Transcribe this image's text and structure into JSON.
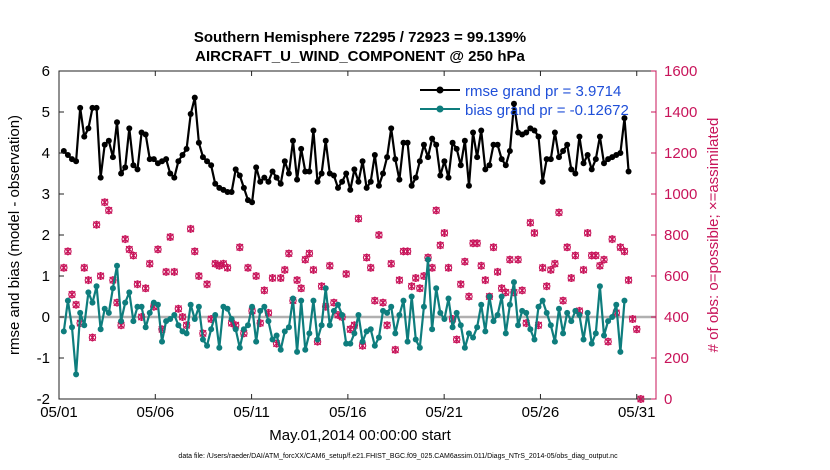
{
  "chart_data": {
    "type": "line",
    "title": "Southern Hemisphere 72295 / 72923 = 99.139%",
    "subtitle": "AIRCRAFT_U_WIND_COMPONENT @ 250 hPa",
    "xlabel": "May.01,2014 00:00:00 start",
    "ylabel": "rmse and bias (model - observation)",
    "y2label": "# of obs: o=possible; ×=assimilated",
    "footnote": "data file: /Users/raeder/DAI/ATM_forcXX/CAM6_setup/f.e21.FHIST_BGC.f09_025.CAM6assim.011/Diags_NTrS_2014-05/obs_diag_output.nc",
    "x_ticks": [
      "05/01",
      "05/06",
      "05/11",
      "05/16",
      "05/21",
      "05/26",
      "05/31"
    ],
    "x_tick_days": [
      1,
      6,
      11,
      16,
      21,
      26,
      31
    ],
    "xlim": [
      1,
      32
    ],
    "ylim": [
      -2,
      6
    ],
    "y_ticks": [
      "-2",
      "-1",
      "0",
      "1",
      "2",
      "3",
      "4",
      "5",
      "6"
    ],
    "y2lim": [
      0,
      1600
    ],
    "y2_ticks": [
      "0",
      "200",
      "400",
      "600",
      "800",
      "1000",
      "1200",
      "1400",
      "1600"
    ],
    "grid": false,
    "legend_position": "top-right",
    "series": [
      {
        "name": "rmse grand pr = 3.9714",
        "color": "#000000",
        "values": [
          4.05,
          3.95,
          3.85,
          3.8,
          5.1,
          4.4,
          4.6,
          5.1,
          5.1,
          3.4,
          4.2,
          4.3,
          3.9,
          4.75,
          3.5,
          3.65,
          4.6,
          3.7,
          3.6,
          4.5,
          4.45,
          3.85,
          3.85,
          3.75,
          3.8,
          3.85,
          3.5,
          3.4,
          3.8,
          3.95,
          4.1,
          4.95,
          5.35,
          4.25,
          3.9,
          3.8,
          3.7,
          3.25,
          3.15,
          3.1,
          3.05,
          3.05,
          3.6,
          3.45,
          3.15,
          2.85,
          2.8,
          3.65,
          3.3,
          3.4,
          3.3,
          3.55,
          3.4,
          3.25,
          3.8,
          3.5,
          4.3,
          3.35,
          4.1,
          3.55,
          3.55,
          4.55,
          3.3,
          3.5,
          4.3,
          3.5,
          3.45,
          3.15,
          3.3,
          3.5,
          3.1,
          3.6,
          3.3,
          3.8,
          3.15,
          3.3,
          3.95,
          3.2,
          3.5,
          3.9,
          4.6,
          3.85,
          3.35,
          4.25,
          4.25,
          3.2,
          3.4,
          3.8,
          4.2,
          3.9,
          4.35,
          4.2,
          3.45,
          3.8,
          3.4,
          4.25,
          4.1,
          3.7,
          4.3,
          3.2,
          4.5,
          3.9,
          4.55,
          3.6,
          3.7,
          4.2,
          4.2,
          3.85,
          3.7,
          4.05,
          5.2,
          4.5,
          4.45,
          4.5,
          4.6,
          4.55,
          4.4,
          3.3,
          3.85,
          3.85,
          4.5,
          3.9,
          4.05,
          4.2,
          3.6,
          3.5,
          4.4,
          3.75,
          3.95,
          3.6,
          3.85,
          4.4,
          3.75,
          3.85,
          3.9,
          3.95,
          4.0,
          4.85,
          3.55
        ]
      },
      {
        "name": "bias grand pr = -0.12672",
        "color": "#0e7d7d",
        "values": [
          -0.35,
          0.4,
          -0.25,
          -1.4,
          0.1,
          -0.2,
          0.6,
          0.35,
          0.75,
          -0.3,
          0.2,
          0.1,
          0.7,
          1.25,
          -0.1,
          0.35,
          0.6,
          -0.1,
          0.25,
          0.25,
          -0.25,
          0.1,
          0.35,
          0.3,
          -0.6,
          -0.1,
          -0.05,
          0.05,
          -0.2,
          -0.35,
          -0.4,
          0.3,
          -0.05,
          0.25,
          -0.55,
          -0.7,
          -0.3,
          0.05,
          -0.75,
          0.25,
          0.2,
          -0.05,
          -0.3,
          -0.75,
          -0.3,
          -0.2,
          0.25,
          -0.6,
          0.15,
          0.25,
          -0.1,
          -0.55,
          -0.45,
          -0.8,
          -0.35,
          -0.25,
          0.45,
          -0.85,
          0.4,
          -0.8,
          -0.4,
          0.4,
          -0.55,
          -0.2,
          0.7,
          -0.2,
          0.15,
          0.3,
          0.05,
          -0.65,
          -0.65,
          -0.4,
          0.05,
          -0.6,
          -0.35,
          -0.3,
          -0.7,
          -0.5,
          0.15,
          0.1,
          0.25,
          -0.4,
          0.05,
          0.4,
          -0.6,
          0.5,
          -0.55,
          -0.75,
          0.25,
          1.4,
          -0.3,
          0.7,
          0.1,
          -0.05,
          0.45,
          -0.25,
          0.1,
          -0.2,
          -0.75,
          -0.4,
          -0.5,
          -0.25,
          0.3,
          -0.35,
          0.5,
          -0.1,
          0.05,
          0.5,
          -0.4,
          0.3,
          0.85,
          -0.2,
          0.15,
          0.1,
          -0.3,
          -0.55,
          0.25,
          0.4,
          0.1,
          -0.2,
          -0.6,
          0.2,
          -0.4,
          0.1,
          -0.1,
          0.15,
          0.05,
          -0.55,
          0.1,
          -0.65,
          -0.4,
          0.75,
          -0.45,
          -0.1,
          0.0,
          0.3,
          -0.85,
          0.4
        ]
      },
      {
        "name": "# of obs possible",
        "color": "#c8145a",
        "values": [
          640,
          720,
          510,
          460,
          370,
          640,
          580,
          300,
          850,
          600,
          960,
          920,
          580,
          470,
          360,
          780,
          730,
          700,
          560,
          400,
          540,
          660,
          450,
          730,
          340,
          620,
          790,
          620,
          440,
          400,
          360,
          830,
          720,
          600,
          320,
          560,
          390,
          660,
          650,
          660,
          640,
          370,
          360,
          740,
          320,
          640,
          430,
          600,
          370,
          530,
          420,
          590,
          270,
          590,
          630,
          710,
          480,
          580,
          540,
          680,
          710,
          630,
          280,
          550,
          450,
          650,
          470,
          410,
          400,
          610,
          340,
          360,
          880,
          260,
          690,
          640,
          480,
          800,
          470,
          360,
          660,
          240,
          580,
          720,
          720,
          550,
          590,
          540,
          600,
          690,
          640,
          920,
          750,
          810,
          640,
          390,
          290,
          560,
          670,
          500,
          760,
          760,
          650,
          580,
          500,
          740,
          620,
          540,
          520,
          680,
          520,
          680,
          530,
          370,
          860,
          810,
          360,
          640,
          550,
          630,
          660,
          910,
          480,
          740,
          590,
          700,
          430,
          630,
          810,
          700,
          700,
          650,
          680,
          280,
          780,
          420,
          740,
          720,
          580,
          390,
          340,
          0
        ]
      },
      {
        "name": "# of obs assimilated",
        "color": "#c8145a",
        "values": [
          640,
          720,
          510,
          460,
          370,
          640,
          580,
          300,
          850,
          600,
          960,
          920,
          580,
          470,
          360,
          780,
          730,
          700,
          560,
          400,
          540,
          660,
          450,
          730,
          340,
          620,
          790,
          620,
          440,
          400,
          360,
          830,
          720,
          600,
          320,
          560,
          390,
          660,
          650,
          660,
          640,
          370,
          360,
          740,
          320,
          640,
          430,
          600,
          370,
          530,
          420,
          590,
          270,
          590,
          630,
          710,
          480,
          580,
          540,
          680,
          710,
          630,
          280,
          550,
          450,
          650,
          470,
          410,
          400,
          610,
          340,
          360,
          880,
          260,
          690,
          640,
          480,
          800,
          470,
          360,
          660,
          240,
          580,
          720,
          720,
          550,
          590,
          540,
          600,
          690,
          640,
          920,
          750,
          810,
          640,
          390,
          290,
          560,
          670,
          500,
          760,
          760,
          650,
          580,
          500,
          740,
          620,
          540,
          520,
          680,
          520,
          680,
          530,
          370,
          860,
          810,
          360,
          640,
          550,
          630,
          660,
          910,
          480,
          740,
          590,
          700,
          430,
          630,
          810,
          700,
          700,
          650,
          680,
          280,
          780,
          420,
          740,
          720,
          580,
          390,
          340,
          0
        ]
      }
    ]
  }
}
